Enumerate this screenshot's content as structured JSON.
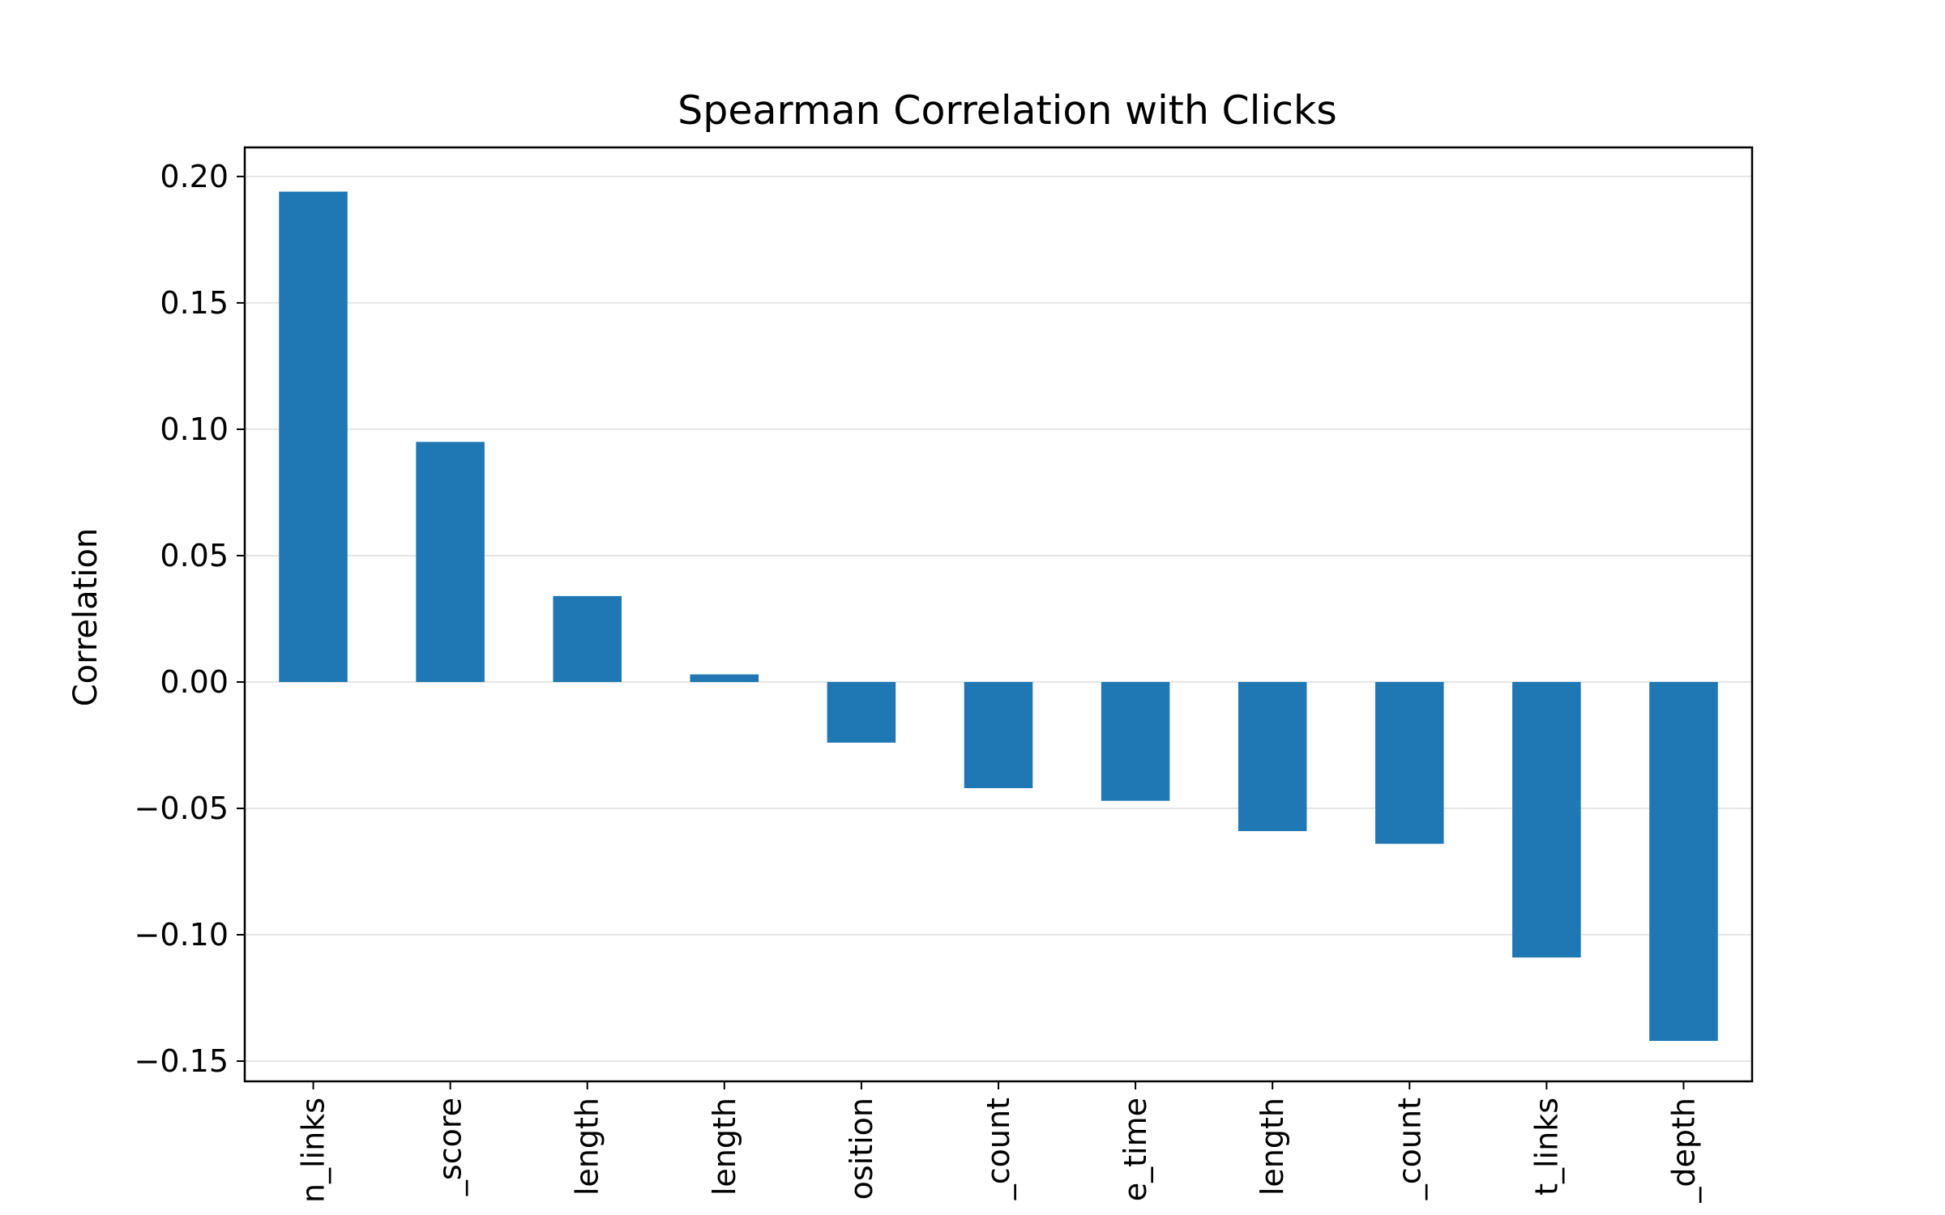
{
  "chart_data": {
    "type": "bar",
    "title": "Spearman Correlation with Clicks",
    "xlabel": "",
    "ylabel": "Correlation",
    "categories": [
      "n_links",
      "_score",
      "length",
      "length",
      "osition",
      "_count",
      "e_time",
      "length",
      "_count",
      "t_links",
      "_depth"
    ],
    "values": [
      0.194,
      0.095,
      0.034,
      0.003,
      -0.024,
      -0.042,
      -0.047,
      -0.059,
      -0.064,
      -0.109,
      -0.142
    ],
    "ylim": [
      -0.158,
      0.2115
    ],
    "yticks": [
      0.2,
      0.15,
      0.1,
      0.05,
      0.0,
      -0.05,
      -0.1,
      -0.15
    ],
    "ytick_labels": [
      "0.20",
      "0.15",
      "0.10",
      "0.05",
      "0.00",
      "−0.05",
      "−0.10",
      "−0.15"
    ],
    "grid": true,
    "bar_color": "#1f77b4",
    "grid_color": "#e6e6e6"
  }
}
